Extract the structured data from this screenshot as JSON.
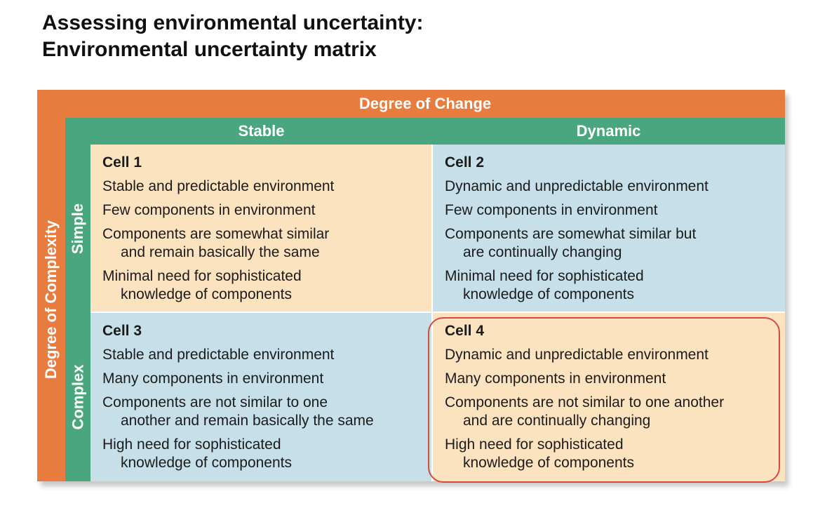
{
  "title": {
    "line1": "Assessing environmental uncertainty:",
    "line2": "Environmental uncertainty matrix"
  },
  "matrix": {
    "change_header": "Degree of Change",
    "complexity_header": "Degree of Complexity",
    "columns": [
      "Stable",
      "Dynamic"
    ],
    "rows": [
      "Simple",
      "Complex"
    ],
    "colors": {
      "outer": "#e87c3e",
      "inner": "#4aa67e",
      "cell_warm": "#fbe3c0",
      "cell_cool": "#c6dfe8",
      "highlight": "#d84a3a"
    },
    "cells": [
      {
        "title": "Cell 1",
        "items": [
          [
            "Stable and predictable environment",
            ""
          ],
          [
            "Few components in environment",
            ""
          ],
          [
            "Components are somewhat similar",
            "and remain basically the same"
          ],
          [
            "Minimal need for sophisticated",
            "knowledge of components"
          ]
        ]
      },
      {
        "title": "Cell 2",
        "items": [
          [
            "Dynamic and unpredictable environment",
            ""
          ],
          [
            "Few components in environment",
            ""
          ],
          [
            "Components are somewhat similar but",
            "are continually changing"
          ],
          [
            "Minimal need for sophisticated",
            "knowledge of components"
          ]
        ]
      },
      {
        "title": "Cell 3",
        "items": [
          [
            "Stable and predictable environment",
            ""
          ],
          [
            "Many components in environment",
            ""
          ],
          [
            "Components are not similar to one",
            "another and remain basically the same"
          ],
          [
            "High need for sophisticated",
            "knowledge of components"
          ]
        ]
      },
      {
        "title": "Cell 4",
        "items": [
          [
            "Dynamic and unpredictable environment",
            ""
          ],
          [
            "Many components in environment",
            ""
          ],
          [
            "Components are not similar to one another",
            "and are continually changing"
          ],
          [
            "High need for sophisticated",
            "knowledge of components"
          ]
        ]
      }
    ]
  }
}
